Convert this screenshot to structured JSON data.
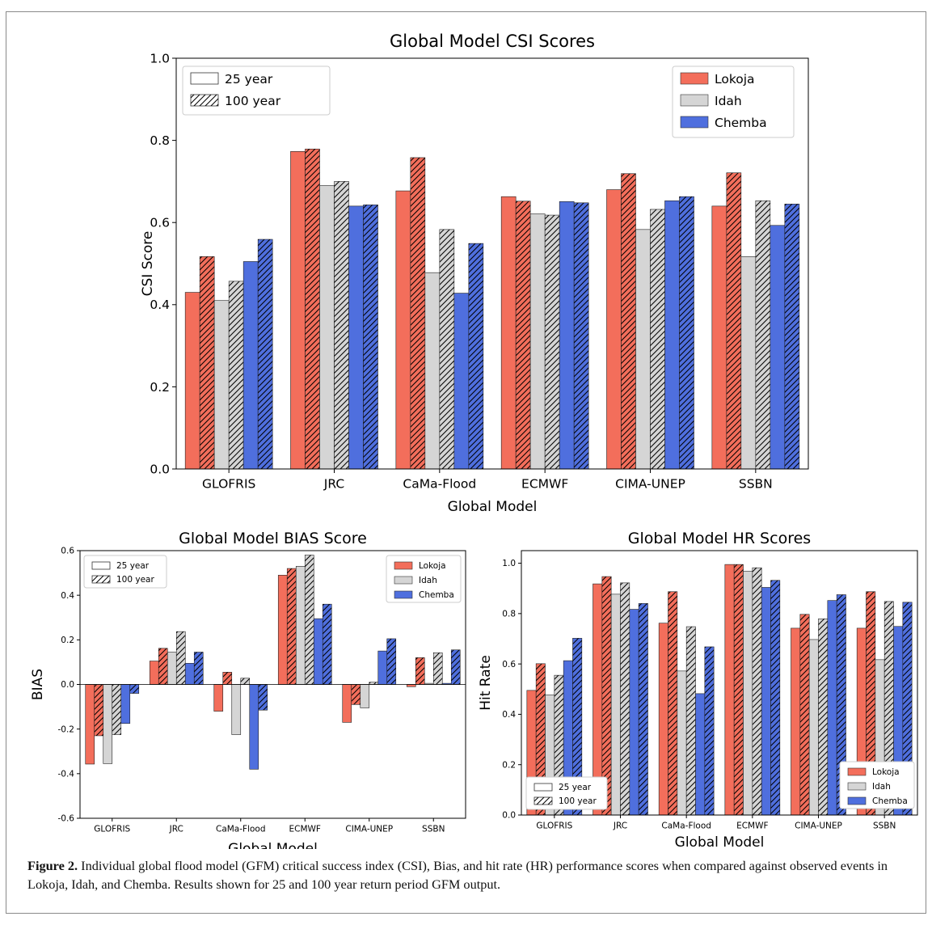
{
  "caption": {
    "label": "Figure 2.",
    "text": " Individual global flood model (GFM) critical success index (CSI), Bias, and hit rate (HR) performance scores when compared against observed events in Lokoja, Idah, and Chemba. Results shown for 25 and 100 year return period GFM output."
  },
  "colors": {
    "Lokoja": "#f36e5b",
    "Idah": "#d5d5d5",
    "Chemba": "#4f6fde"
  },
  "chart_data": [
    {
      "type": "bar",
      "title": "Global Model CSI Scores",
      "xlabel": "Global Model",
      "ylabel": "CSI Score",
      "ylim": [
        0,
        1
      ],
      "yticks": [
        "0.0",
        "0.2",
        "0.4",
        "0.6",
        "0.8",
        "1.0"
      ],
      "categories": [
        "GLOFRIS",
        "JRC",
        "CaMa-Flood",
        "ECMWF",
        "CIMA-UNEP",
        "SSBN"
      ],
      "legend_return": [
        "25 year",
        "100 year"
      ],
      "legend_return_position": "upper-left",
      "legend_sites_position": "upper-right",
      "series": [
        {
          "name": "Lokoja",
          "return_period": "25 year",
          "values": [
            0.43,
            0.773,
            0.677,
            0.663,
            0.68,
            0.64
          ]
        },
        {
          "name": "Lokoja",
          "return_period": "100 year",
          "values": [
            0.517,
            0.779,
            0.758,
            0.652,
            0.719,
            0.721
          ]
        },
        {
          "name": "Idah",
          "return_period": "25 year",
          "values": [
            0.41,
            0.69,
            0.478,
            0.621,
            0.583,
            0.517
          ]
        },
        {
          "name": "Idah",
          "return_period": "100 year",
          "values": [
            0.457,
            0.7,
            0.583,
            0.618,
            0.632,
            0.653
          ]
        },
        {
          "name": "Chemba",
          "return_period": "25 year",
          "values": [
            0.505,
            0.64,
            0.428,
            0.651,
            0.653,
            0.593
          ]
        },
        {
          "name": "Chemba",
          "return_period": "100 year",
          "values": [
            0.559,
            0.643,
            0.549,
            0.648,
            0.663,
            0.645
          ]
        }
      ]
    },
    {
      "type": "bar",
      "title": "Global Model BIAS Score",
      "xlabel": "Global Model",
      "ylabel": "BIAS",
      "ylim": [
        -0.6,
        0.6
      ],
      "yticks": [
        "-0.6",
        "-0.4",
        "-0.2",
        "0.0",
        "0.2",
        "0.4",
        "0.6"
      ],
      "categories": [
        "GLOFRIS",
        "JRC",
        "CaMa-Flood",
        "ECMWF",
        "CIMA-UNEP",
        "SSBN"
      ],
      "legend_return": [
        "25 year",
        "100 year"
      ],
      "legend_return_position": "upper-left",
      "legend_sites_position": "upper-right",
      "series": [
        {
          "name": "Lokoja",
          "return_period": "25 year",
          "values": [
            -0.357,
            0.105,
            -0.12,
            0.49,
            -0.17,
            -0.01
          ]
        },
        {
          "name": "Lokoja",
          "return_period": "100 year",
          "values": [
            -0.23,
            0.162,
            0.055,
            0.52,
            -0.09,
            0.12
          ]
        },
        {
          "name": "Idah",
          "return_period": "25 year",
          "values": [
            -0.355,
            0.145,
            -0.225,
            0.53,
            -0.105,
            0.005
          ]
        },
        {
          "name": "Idah",
          "return_period": "100 year",
          "values": [
            -0.225,
            0.237,
            0.028,
            0.58,
            0.01,
            0.142
          ]
        },
        {
          "name": "Chemba",
          "return_period": "25 year",
          "values": [
            -0.175,
            0.095,
            -0.38,
            0.295,
            0.15,
            0.005
          ]
        },
        {
          "name": "Chemba",
          "return_period": "100 year",
          "values": [
            -0.04,
            0.145,
            -0.115,
            0.36,
            0.205,
            0.155
          ]
        }
      ]
    },
    {
      "type": "bar",
      "title": "Global Model HR Scores",
      "xlabel": "Global Model",
      "ylabel": "Hit Rate",
      "ylim": [
        0,
        1.05
      ],
      "yticks": [
        "0.0",
        "0.2",
        "0.4",
        "0.6",
        "0.8",
        "1.0"
      ],
      "categories": [
        "GLOFRIS",
        "JRC",
        "CaMa-Flood",
        "ECMWF",
        "CIMA-UNEP",
        "SSBN"
      ],
      "legend_return": [
        "25 year",
        "100 year"
      ],
      "legend_return_position": "lower-left",
      "legend_sites_position": "lower-right",
      "series": [
        {
          "name": "Lokoja",
          "return_period": "25 year",
          "values": [
            0.495,
            0.918,
            0.762,
            0.995,
            0.742,
            0.742
          ]
        },
        {
          "name": "Lokoja",
          "return_period": "100 year",
          "values": [
            0.601,
            0.947,
            0.887,
            0.995,
            0.797,
            0.887
          ]
        },
        {
          "name": "Idah",
          "return_period": "25 year",
          "values": [
            0.477,
            0.877,
            0.572,
            0.968,
            0.697,
            0.617
          ]
        },
        {
          "name": "Idah",
          "return_period": "100 year",
          "values": [
            0.555,
            0.922,
            0.748,
            0.982,
            0.779,
            0.848
          ]
        },
        {
          "name": "Chemba",
          "return_period": "25 year",
          "values": [
            0.613,
            0.817,
            0.482,
            0.904,
            0.852,
            0.749
          ]
        },
        {
          "name": "Chemba",
          "return_period": "100 year",
          "values": [
            0.702,
            0.84,
            0.668,
            0.932,
            0.875,
            0.845
          ]
        }
      ]
    }
  ]
}
